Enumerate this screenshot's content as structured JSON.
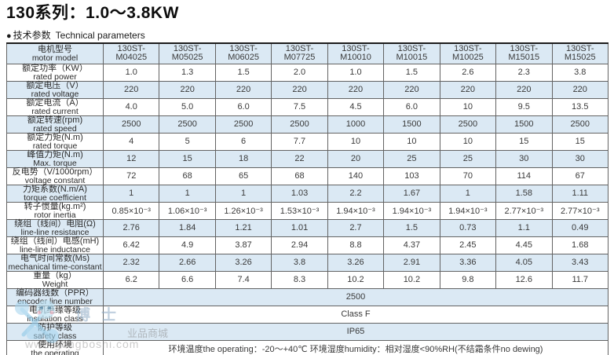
{
  "page": {
    "title": "130系列：1.0～3.8KW",
    "section_bullet": "●",
    "section_zh": "技术参数",
    "section_en": "Technical parameters"
  },
  "table": {
    "header": {
      "label_zh": "电机型号",
      "label_en": "motor model",
      "model_prefix": "130ST-",
      "models": [
        "M04025",
        "M05025",
        "M06025",
        "M07725",
        "M10010",
        "M10015",
        "M10025",
        "M15015",
        "M15025"
      ]
    },
    "rows": [
      {
        "zh": "额定功率（KW）",
        "en": "rated power",
        "values": [
          "1.0",
          "1.3",
          "1.5",
          "2.0",
          "1.0",
          "1.5",
          "2.6",
          "2.3",
          "3.8"
        ]
      },
      {
        "zh": "额定电压（V）",
        "en": "rated voltage",
        "values": [
          "220",
          "220",
          "220",
          "220",
          "220",
          "220",
          "220",
          "220",
          "220"
        ]
      },
      {
        "zh": "额定电流（A）",
        "en": "rated current",
        "values": [
          "4.0",
          "5.0",
          "6.0",
          "7.5",
          "4.5",
          "6.0",
          "10",
          "9.5",
          "13.5"
        ]
      },
      {
        "zh": "额定转速(rpm)",
        "en": "rated speed",
        "values": [
          "2500",
          "2500",
          "2500",
          "2500",
          "1000",
          "1500",
          "2500",
          "1500",
          "2500"
        ]
      },
      {
        "zh": "额定力矩(N.m)",
        "en": "rated torque",
        "values": [
          "4",
          "5",
          "6",
          "7.7",
          "10",
          "10",
          "10",
          "15",
          "15"
        ]
      },
      {
        "zh": "峰值力矩(N.m)",
        "en": "Max. torque",
        "values": [
          "12",
          "15",
          "18",
          "22",
          "20",
          "25",
          "25",
          "30",
          "30"
        ]
      },
      {
        "zh": "反电势（V/1000rpm）",
        "en": "voltage constant",
        "values": [
          "72",
          "68",
          "65",
          "68",
          "140",
          "103",
          "70",
          "114",
          "67"
        ]
      },
      {
        "zh": "力矩系数(N.m/A)",
        "en": "torque coefficient",
        "values": [
          "1",
          "1",
          "1",
          "1.03",
          "2.2",
          "1.67",
          "1",
          "1.58",
          "1.11"
        ]
      },
      {
        "zh": "转子惯量(kg.m²)",
        "en": "rotor inertia",
        "values": [
          "0.85×10⁻³",
          "1.06×10⁻³",
          "1.26×10⁻³",
          "1.53×10⁻³",
          "1.94×10⁻³",
          "1.94×10⁻³",
          "1.94×10⁻³",
          "2.77×10⁻³",
          "2.77×10⁻³"
        ]
      },
      {
        "zh": "绕组（线间）电阻(Ω)",
        "en": "line-line resistance",
        "values": [
          "2.76",
          "1.84",
          "1.21",
          "1.01",
          "2.7",
          "1.5",
          "0.73",
          "1.1",
          "0.49"
        ]
      },
      {
        "zh": "绕组（线间）电感(mH)",
        "en": "line-line inductance",
        "values": [
          "6.42",
          "4.9",
          "3.87",
          "2.94",
          "8.8",
          "4.37",
          "2.45",
          "4.45",
          "1.68"
        ]
      },
      {
        "zh": "电气时间常数(Ms)",
        "en": "mechanical time-constant",
        "values": [
          "2.32",
          "2.66",
          "3.26",
          "3.8",
          "3.26",
          "2.91",
          "3.36",
          "4.05",
          "3.43"
        ]
      },
      {
        "zh": "重量（kg）",
        "en": "Weight",
        "values": [
          "6.2",
          "6.6",
          "7.4",
          "8.3",
          "10.2",
          "10.2",
          "9.8",
          "12.6",
          "11.7"
        ]
      }
    ],
    "merged_rows": [
      {
        "zh": "编码器线数（PPR）",
        "en": "encoder line number",
        "value": "2500"
      },
      {
        "zh": "电机绝缘等级",
        "en": "insulation class",
        "value": "Class F"
      },
      {
        "zh": "防护等级",
        "en": "safety class",
        "value": "IP65"
      },
      {
        "zh": "使用环境",
        "en": "the operating",
        "value": "环境温度the operating：-20～+40℃ 环境湿度humidity：相对湿度<90%RH(不结霜条件no dewing)"
      }
    ]
  },
  "watermark": {
    "boshi": "博士",
    "mall": "业品商城",
    "url": "www.gongboshi.com"
  },
  "colors": {
    "stripe_blue": "#dbe9f4",
    "border_gray": "#636363",
    "watermark_blue": "#8ec9e8"
  }
}
